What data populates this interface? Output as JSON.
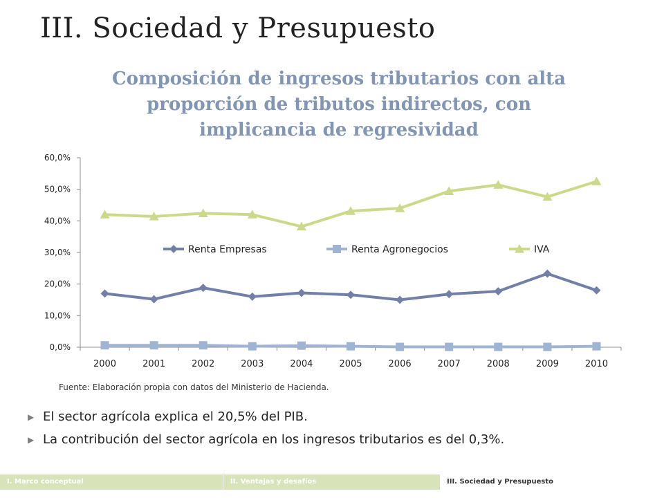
{
  "slide": {
    "title": "III. Sociedad y Presupuesto",
    "subtitle_lines": [
      "Composición de ingresos tributarios con alta",
      "proporción de tributos indirectos, con",
      "implicancia de regresividad"
    ],
    "source": "Fuente: Elaboración propia con datos del Ministerio de Hacienda.",
    "bullets": [
      "El sector agrícola explica el 20,5% del PIB.",
      "La contribución del sector agrícola en los ingresos tributarios es del 0,3%."
    ]
  },
  "footer": {
    "tabs": [
      "I. Marco conceptual",
      "II. Ventajas y desafíos",
      "III. Sociedad y Presupuesto"
    ]
  },
  "colors": {
    "renta_empresas": "#7280a8",
    "renta_agronegocios": "#9fb4d2",
    "iva": "#cdd98a",
    "subtitle": "#8196b4"
  },
  "chart_data": {
    "type": "line",
    "categories": [
      "2000",
      "2001",
      "2002",
      "2003",
      "2004",
      "2005",
      "2006",
      "2007",
      "2008",
      "2009",
      "2010"
    ],
    "ylim": [
      0,
      60
    ],
    "yticks": [
      "0,0%",
      "10,0%",
      "20,0%",
      "30,0%",
      "40,0%",
      "50,0%",
      "60,0%"
    ],
    "ytick_values": [
      0,
      10,
      20,
      30,
      40,
      50,
      60
    ],
    "grid": false,
    "legend_position": "inside-middle",
    "series": [
      {
        "name": "Renta Empresas",
        "marker": "diamond",
        "values": [
          17.0,
          15.2,
          18.8,
          16.0,
          17.2,
          16.6,
          15.0,
          16.8,
          17.7,
          23.3,
          18.0
        ]
      },
      {
        "name": "Renta Agronegocios",
        "marker": "square",
        "values": [
          0.6,
          0.6,
          0.6,
          0.3,
          0.5,
          0.3,
          0.1,
          0.1,
          0.1,
          0.1,
          0.3
        ]
      },
      {
        "name": "IVA",
        "marker": "triangle",
        "values": [
          42.0,
          41.4,
          42.4,
          42.0,
          38.2,
          43.1,
          44.0,
          49.4,
          51.4,
          47.6,
          52.5
        ]
      }
    ]
  }
}
